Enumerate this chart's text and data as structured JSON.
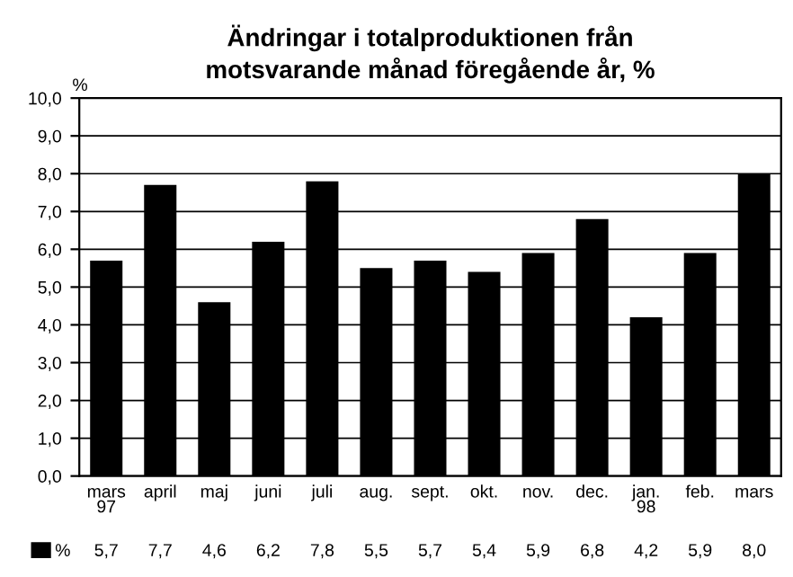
{
  "chart_data": {
    "type": "bar",
    "title": "Ändringar i totalproduktionen från\nmotsvarande månad föregående år, %",
    "ylabel": "%",
    "categories": [
      "mars\n97",
      "april",
      "maj",
      "juni",
      "juli",
      "aug.",
      "sept.",
      "okt.",
      "nov.",
      "dec.",
      "jan.\n98",
      "feb.",
      "mars"
    ],
    "series": [
      {
        "name": "%",
        "color": "#000000",
        "values": [
          5.7,
          7.7,
          4.6,
          6.2,
          7.8,
          5.5,
          5.7,
          5.4,
          5.9,
          6.8,
          4.2,
          5.9,
          8.0
        ],
        "value_labels": [
          "5,7",
          "7,7",
          "4,6",
          "6,2",
          "7,8",
          "5,5",
          "5,7",
          "5,4",
          "5,9",
          "6,8",
          "4,2",
          "5,9",
          "8,0"
        ]
      }
    ],
    "ylim": [
      0,
      10
    ],
    "yticks": [
      {
        "value": 0,
        "label": "0,0"
      },
      {
        "value": 1,
        "label": "1,0"
      },
      {
        "value": 2,
        "label": "2,0"
      },
      {
        "value": 3,
        "label": "3,0"
      },
      {
        "value": 4,
        "label": "4,0"
      },
      {
        "value": 5,
        "label": "5,0"
      },
      {
        "value": 6,
        "label": "6,0"
      },
      {
        "value": 7,
        "label": "7,0"
      },
      {
        "value": 8,
        "label": "8,0"
      },
      {
        "value": 9,
        "label": "9,0"
      },
      {
        "value": 10,
        "label": "10,0"
      }
    ],
    "grid": "y",
    "legend": "bottom left"
  }
}
